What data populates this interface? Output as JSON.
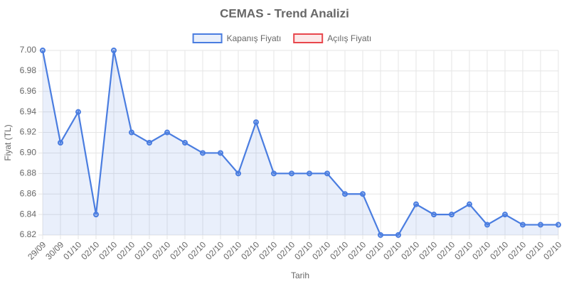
{
  "chart_data": {
    "type": "line",
    "title": "CEMAS - Trend Analizi",
    "x_label": "Tarih",
    "y_label": "Fiyat (TL)",
    "categories": [
      "29/09",
      "30/09",
      "01/10",
      "02/10",
      "02/10",
      "02/10",
      "02/10",
      "02/10",
      "02/10",
      "02/10",
      "02/10",
      "02/10",
      "02/10",
      "02/10",
      "02/10",
      "02/10",
      "02/10",
      "02/10",
      "02/10",
      "02/10",
      "02/10",
      "02/10",
      "02/10",
      "02/10",
      "02/10",
      "02/10",
      "02/10",
      "02/10",
      "02/10",
      "02/10"
    ],
    "series": [
      {
        "name": "Kapanış Fiyatı",
        "color": "#4a7de0",
        "values": [
          7.0,
          6.91,
          6.94,
          6.84,
          7.0,
          6.92,
          6.91,
          6.92,
          6.91,
          6.9,
          6.9,
          6.88,
          6.93,
          6.88,
          6.88,
          6.88,
          6.88,
          6.86,
          6.86,
          6.82,
          6.82,
          6.85,
          6.84,
          6.84,
          6.85,
          6.83,
          6.84,
          6.83,
          6.83,
          6.83
        ]
      },
      {
        "name": "Açılış Fiyatı",
        "color": "#e8464c",
        "values": [
          null,
          null,
          null,
          null,
          null,
          null,
          null,
          null,
          null,
          null,
          null,
          null,
          null,
          null,
          null,
          null,
          null,
          null,
          null,
          null,
          null,
          null,
          null,
          null,
          null,
          null,
          null,
          null,
          null,
          null
        ]
      }
    ],
    "ylim": [
      6.82,
      7.0
    ],
    "yticks": [
      6.82,
      6.84,
      6.86,
      6.88,
      {
        "value": 6.9,
        "label": "6.90"
      },
      6.92,
      6.94,
      6.96,
      6.98,
      {
        "value": 7,
        "label": "7.00"
      }
    ],
    "grid": true,
    "legend": "top"
  }
}
